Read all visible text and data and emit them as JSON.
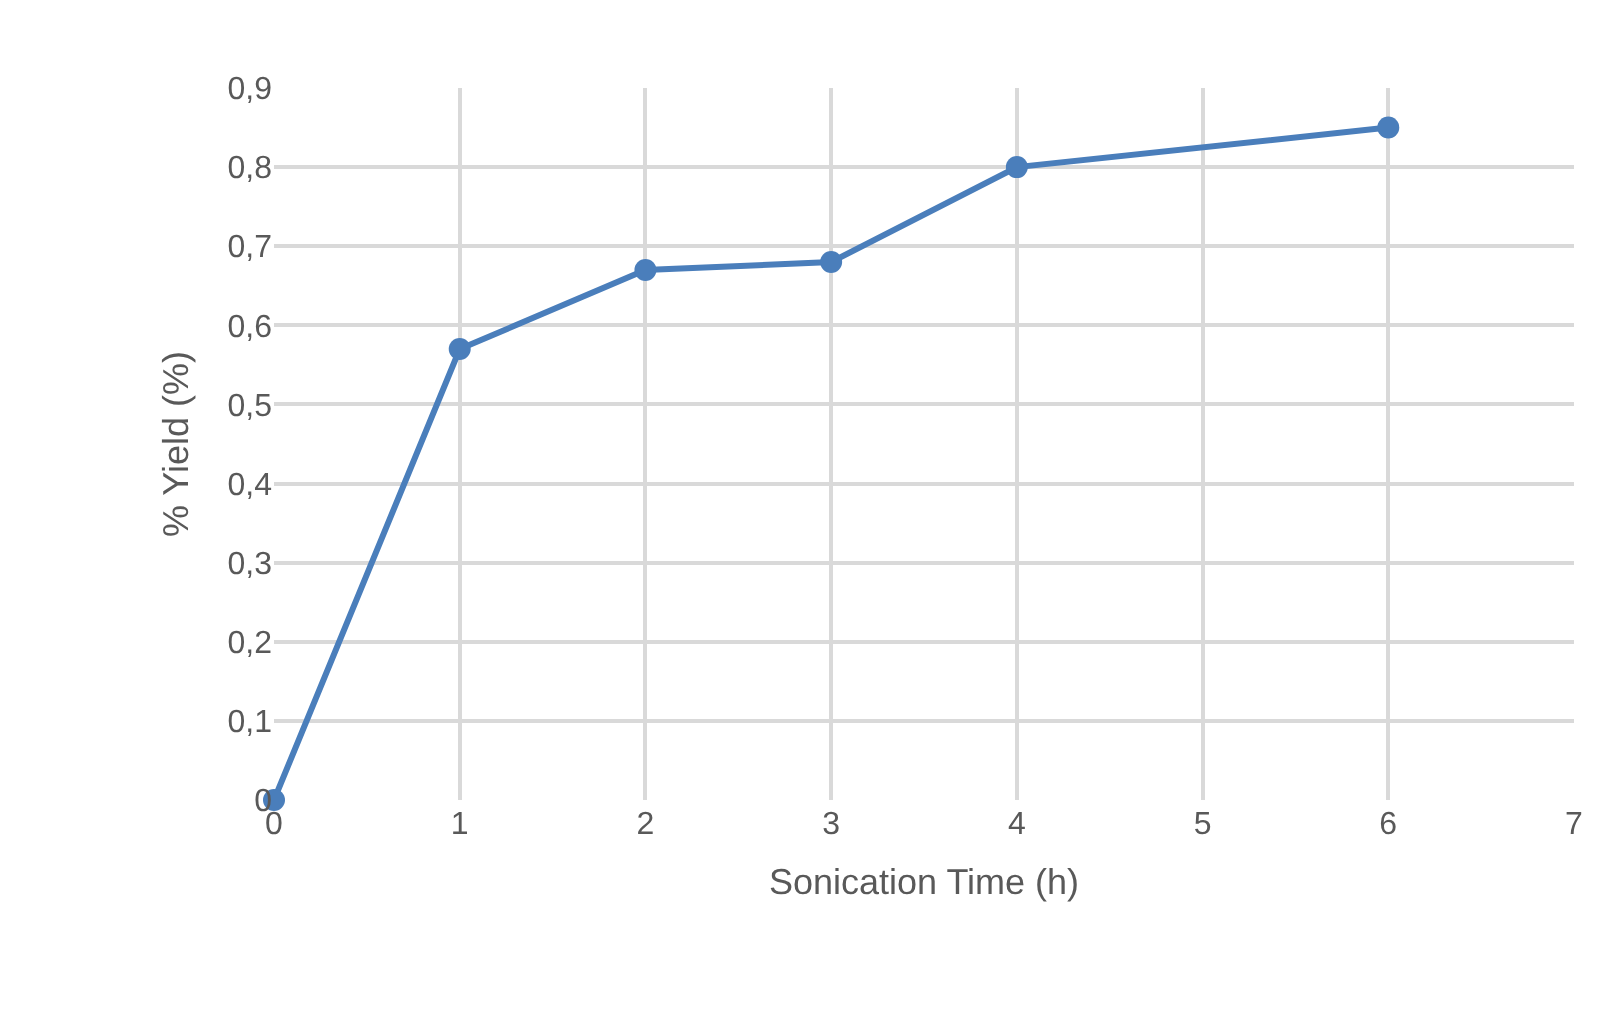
{
  "chart_data": {
    "type": "line",
    "xlabel": "Sonication Time (h)",
    "ylabel": "% Yield (%)",
    "x": [
      0,
      1,
      2,
      3,
      4,
      6
    ],
    "series": [
      {
        "color": "#4a7ebb",
        "values": [
          0,
          0.57,
          0.67,
          0.68,
          0.8,
          0.85
        ]
      }
    ],
    "xlim": [
      0,
      7
    ],
    "xticks": [
      0,
      1,
      2,
      3,
      4,
      5,
      6,
      7
    ],
    "ylim": [
      0,
      0.9
    ],
    "yticks": [
      0,
      {
        "value": 0.1,
        "label": "0,1"
      },
      {
        "value": 0.2,
        "label": "0,2"
      },
      {
        "value": 0.3,
        "label": "0,3"
      },
      {
        "value": 0.4,
        "label": "0,4"
      },
      {
        "value": 0.5,
        "label": "0,5"
      },
      {
        "value": 0.6,
        "label": "0,6"
      },
      {
        "value": 0.7,
        "label": "0,7"
      },
      {
        "value": 0.8,
        "label": "0,8"
      },
      {
        "value": 0.9,
        "label": "0,9"
      }
    ],
    "grid": true,
    "marker": "circle",
    "line_style": "solid"
  }
}
